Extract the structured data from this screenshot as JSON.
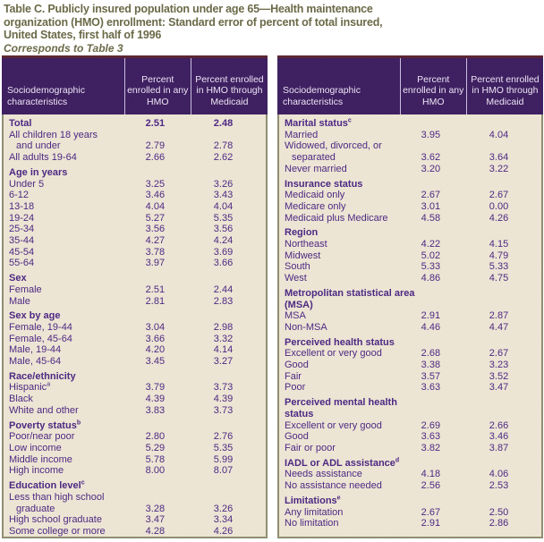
{
  "title": {
    "lines": [
      "Table C.  Publicly insured population under age 65—Health maintenance",
      "organization (HMO) enrollment: Standard error of percent of total insured,",
      "United States, first half of 1996"
    ],
    "note": "Corresponds to Table 3"
  },
  "header": {
    "col0": "Sociodemographic characteristics",
    "col1": "Percent enrolled in any HMO",
    "col2": "Percent enrolled in HMO through Medicaid"
  },
  "colors": {
    "title_olive": "#6b6a48",
    "header_purple": "#3f2062",
    "header_top_maroon": "#5c2633",
    "body_cream": "#efe8d9",
    "body_border_olive": "#8f8e70",
    "text_purple": "#4d2983"
  },
  "tables": [
    {
      "name": "left",
      "sections": [
        {
          "rows": [
            {
              "label": "Total",
              "bold": true,
              "v1": "2.51",
              "v2": "2.48"
            },
            {
              "label": "All children 18 years",
              "label2": "and under",
              "v1": "2.79",
              "v2": "2.78"
            },
            {
              "label": "All adults 19-64",
              "v1": "2.66",
              "v2": "2.62"
            }
          ]
        },
        {
          "header": "Age in years",
          "rows": [
            {
              "label": "Under 5",
              "v1": "3.25",
              "v2": "3.26"
            },
            {
              "label": "6-12",
              "v1": "3.46",
              "v2": "3.43"
            },
            {
              "label": "13-18",
              "v1": "4.04",
              "v2": "4.04"
            },
            {
              "label": "19-24",
              "v1": "5.27",
              "v2": "5.35"
            },
            {
              "label": "25-34",
              "v1": "3.56",
              "v2": "3.56"
            },
            {
              "label": "35-44",
              "v1": "4.27",
              "v2": "4.24"
            },
            {
              "label": "45-54",
              "v1": "3.78",
              "v2": "3.69"
            },
            {
              "label": "55-64",
              "v1": "3.97",
              "v2": "3.66"
            }
          ]
        },
        {
          "header": "Sex",
          "rows": [
            {
              "label": "Female",
              "v1": "2.51",
              "v2": "2.44"
            },
            {
              "label": "Male",
              "v1": "2.81",
              "v2": "2.83"
            }
          ]
        },
        {
          "header": "Sex by age",
          "rows": [
            {
              "label": "Female, 19-44",
              "v1": "3.04",
              "v2": "2.98"
            },
            {
              "label": "Female, 45-64",
              "v1": "3.66",
              "v2": "3.32"
            },
            {
              "label": "Male, 19-44",
              "v1": "4.20",
              "v2": "4.14"
            },
            {
              "label": "Male, 45-64",
              "v1": "3.45",
              "v2": "3.27"
            }
          ]
        },
        {
          "header": "Race/ethnicity",
          "rows": [
            {
              "label": "Hispanic",
              "sup": "a",
              "v1": "3.79",
              "v2": "3.73"
            },
            {
              "label": "Black",
              "v1": "4.39",
              "v2": "4.39"
            },
            {
              "label": "White and other",
              "v1": "3.83",
              "v2": "3.73"
            }
          ]
        },
        {
          "header": "Poverty status",
          "sup": "b",
          "rows": [
            {
              "label": "Poor/near poor",
              "v1": "2.80",
              "v2": "2.76"
            },
            {
              "label": "Low income",
              "v1": "5.29",
              "v2": "5.35"
            },
            {
              "label": "Middle income",
              "v1": "5.78",
              "v2": "5.99"
            },
            {
              "label": "High income",
              "v1": "8.00",
              "v2": "8.07"
            }
          ]
        },
        {
          "header": "Education level",
          "sup": "c",
          "rows": [
            {
              "label": "Less than high school",
              "label2": "graduate",
              "v1": "3.28",
              "v2": "3.26"
            },
            {
              "label": "High school graduate",
              "v1": "3.47",
              "v2": "3.34"
            },
            {
              "label": "Some college or more",
              "v1": "4.28",
              "v2": "4.26"
            }
          ]
        }
      ]
    },
    {
      "name": "right",
      "sections": [
        {
          "header": "Marital status",
          "sup": "c",
          "rows": [
            {
              "label": "Married",
              "v1": "3.95",
              "v2": "4.04"
            },
            {
              "label": "Widowed, divorced, or",
              "label2": "separated",
              "v1": "3.62",
              "v2": "3.64"
            },
            {
              "label": "Never married",
              "v1": "3.20",
              "v2": "3.22"
            }
          ]
        },
        {
          "header": "Insurance status",
          "rows": [
            {
              "label": "Medicaid only",
              "v1": "2.67",
              "v2": "2.67"
            },
            {
              "label": "Medicare only",
              "v1": "3.01",
              "v2": "0.00"
            },
            {
              "label": "Medicaid plus Medicare",
              "v1": "4.58",
              "v2": "4.26"
            }
          ]
        },
        {
          "header": "Region",
          "rows": [
            {
              "label": "Northeast",
              "v1": "4.22",
              "v2": "4.15"
            },
            {
              "label": "Midwest",
              "v1": "5.02",
              "v2": "4.79"
            },
            {
              "label": "South",
              "v1": "5.33",
              "v2": "5.33"
            },
            {
              "label": "West",
              "v1": "4.86",
              "v2": "4.75"
            }
          ]
        },
        {
          "header": "Metropolitan statistical area (MSA)",
          "rows": [
            {
              "label": "MSA",
              "v1": "2.91",
              "v2": "2.87"
            },
            {
              "label": "Non-MSA",
              "v1": "4.46",
              "v2": "4.47"
            }
          ]
        },
        {
          "header": "Perceived health status",
          "rows": [
            {
              "label": "Excellent or very good",
              "v1": "2.68",
              "v2": "2.67"
            },
            {
              "label": "Good",
              "v1": "3.38",
              "v2": "3.23"
            },
            {
              "label": "Fair",
              "v1": "3.57",
              "v2": "3.52"
            },
            {
              "label": "Poor",
              "v1": "3.63",
              "v2": "3.47"
            }
          ]
        },
        {
          "header": "Perceived mental health status",
          "rows": [
            {
              "label": "Excellent or very good",
              "v1": "2.69",
              "v2": "2.66"
            },
            {
              "label": "Good",
              "v1": "3.63",
              "v2": "3.46"
            },
            {
              "label": "Fair or poor",
              "v1": "3.82",
              "v2": "3.87"
            }
          ]
        },
        {
          "header": "IADL or ADL assistance",
          "sup": "d",
          "rows": [
            {
              "label": "Needs assistance",
              "v1": "4.18",
              "v2": "4.06"
            },
            {
              "label": "No assistance needed",
              "v1": "2.56",
              "v2": "2.53"
            }
          ]
        },
        {
          "header": "Limitations",
          "sup": "e",
          "rows": [
            {
              "label": "Any limitation",
              "v1": "2.67",
              "v2": "2.50"
            },
            {
              "label": "No limitation",
              "v1": "2.91",
              "v2": "2.86"
            }
          ]
        }
      ]
    }
  ]
}
